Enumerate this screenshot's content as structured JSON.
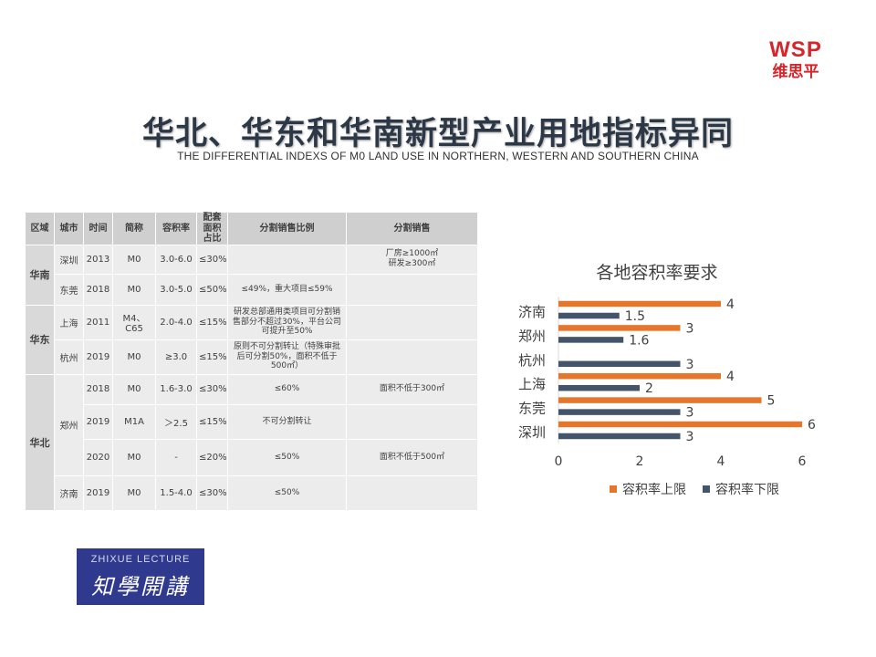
{
  "logo": {
    "brand": "WSP",
    "cn": "维思平"
  },
  "title": "华北、华东和华南新型产业用地指标异同",
  "subtitle": "THE DIFFERENTIAL INDEXS OF M0 LAND USE IN NORTHERN, WESTERN AND SOUTHERN CHINA",
  "table": {
    "headers": [
      "区域",
      "城市",
      "时间",
      "简称",
      "容积率",
      "配套面积占比",
      "分割销售比例",
      "分割销售"
    ],
    "regions": [
      "华南",
      "华东",
      "华北"
    ],
    "rows": [
      [
        "深圳",
        "2013",
        "M0",
        "3.0-6.0",
        "≤30%",
        "",
        "厂房≥1000㎡\n研发≥300㎡"
      ],
      [
        "东莞",
        "2018",
        "M0",
        "3.0-5.0",
        "≤50%",
        "≤49%，重大项目≤59%",
        ""
      ],
      [
        "上海",
        "2011",
        "M4、C65",
        "2.0-4.0",
        "≤15%",
        "研发总部通用类项目可分割销售部分不超过30%，平台公司可提升至50%",
        ""
      ],
      [
        "杭州",
        "2019",
        "M0",
        "≥3.0",
        "≤15%",
        "原则不可分割转让（特殊审批后可分割50%，面积不低于500㎡）",
        ""
      ],
      [
        "郑州",
        "2018",
        "M0",
        "1.6-3.0",
        "≤30%",
        "≤60%",
        "面积不低于300㎡"
      ],
      [
        "",
        "2019",
        "M1A",
        "＞2.5",
        "≤15%",
        "不可分割转让",
        ""
      ],
      [
        "",
        "2020",
        "M0",
        "-",
        "≤20%",
        "≤50%",
        "面积不低于500㎡"
      ],
      [
        "济南",
        "2019",
        "M0",
        "1.5-4.0",
        "≤30%",
        "≤50%",
        ""
      ]
    ]
  },
  "chart_data": {
    "type": "bar",
    "orientation": "horizontal",
    "title": "各地容积率要求",
    "categories": [
      "济南",
      "郑州",
      "杭州",
      "上海",
      "东莞",
      "深圳"
    ],
    "series": [
      {
        "name": "容积率上限",
        "values": [
          4,
          3,
          null,
          4,
          5,
          6
        ],
        "color": "#e4772c"
      },
      {
        "name": "容积率下限",
        "values": [
          1.5,
          1.6,
          3,
          2,
          3,
          3
        ],
        "color": "#44546a"
      }
    ],
    "xlim": [
      0,
      6
    ],
    "xticks": [
      "0",
      "2",
      "4",
      "6"
    ],
    "grid": false,
    "legend": "bottom"
  },
  "badge": {
    "en": "ZHIXUE LECTURE",
    "cn": "知學開講"
  }
}
